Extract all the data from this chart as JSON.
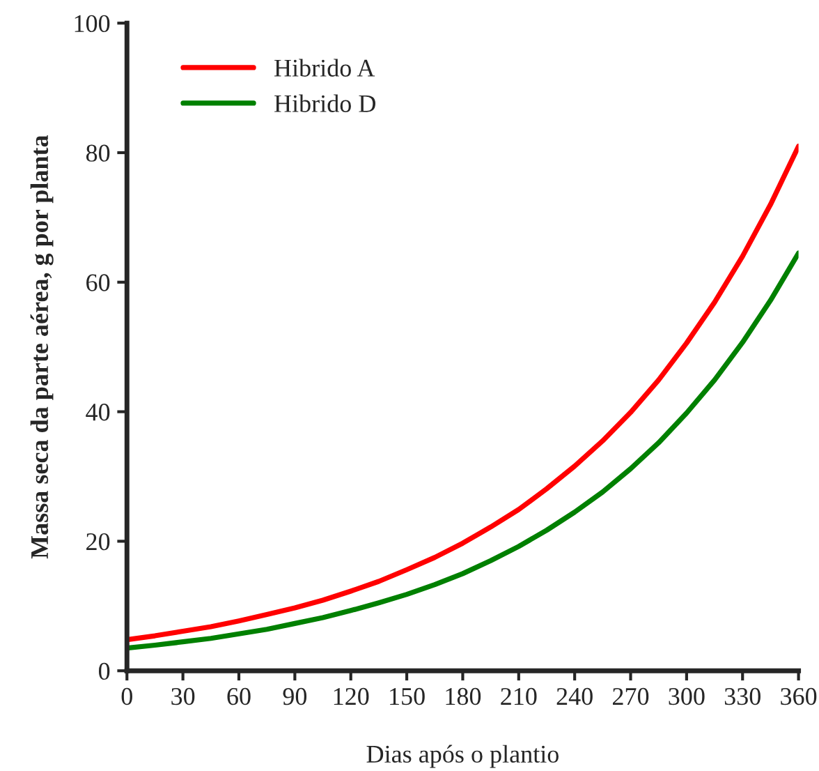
{
  "chart_data": {
    "type": "line",
    "xlabel": "Dias após o plantio",
    "ylabel": "Massa seca da parte aérea, g por planta",
    "x": [
      0,
      15,
      30,
      45,
      60,
      75,
      90,
      105,
      120,
      135,
      150,
      165,
      180,
      195,
      210,
      225,
      240,
      255,
      270,
      285,
      300,
      315,
      330,
      345,
      360
    ],
    "series": [
      {
        "name": "Hibrido A",
        "color": "#ff0000",
        "values": [
          4.8,
          5.4,
          6.1,
          6.8,
          7.7,
          8.7,
          9.7,
          10.9,
          12.3,
          13.8,
          15.6,
          17.5,
          19.7,
          22.2,
          24.9,
          28.1,
          31.6,
          35.5,
          39.9,
          44.9,
          50.6,
          56.9,
          64.0,
          72.0,
          81.0
        ]
      },
      {
        "name": "Hibrido D",
        "color": "#008000",
        "values": [
          3.5,
          3.95,
          4.47,
          5.0,
          5.7,
          6.4,
          7.3,
          8.2,
          9.3,
          10.5,
          11.8,
          13.3,
          15.0,
          17.0,
          19.2,
          21.7,
          24.5,
          27.6,
          31.2,
          35.2,
          39.8,
          44.9,
          50.7,
          57.2,
          64.5
        ]
      }
    ],
    "xlim": [
      0,
      360
    ],
    "ylim": [
      0,
      100
    ],
    "xticks": [
      0,
      30,
      60,
      90,
      120,
      150,
      180,
      210,
      240,
      270,
      300,
      330,
      360
    ],
    "yticks": [
      0,
      20,
      40,
      60,
      80,
      100
    ],
    "grid": false,
    "legend": "top left",
    "marker": "none",
    "line_style": "solid"
  }
}
